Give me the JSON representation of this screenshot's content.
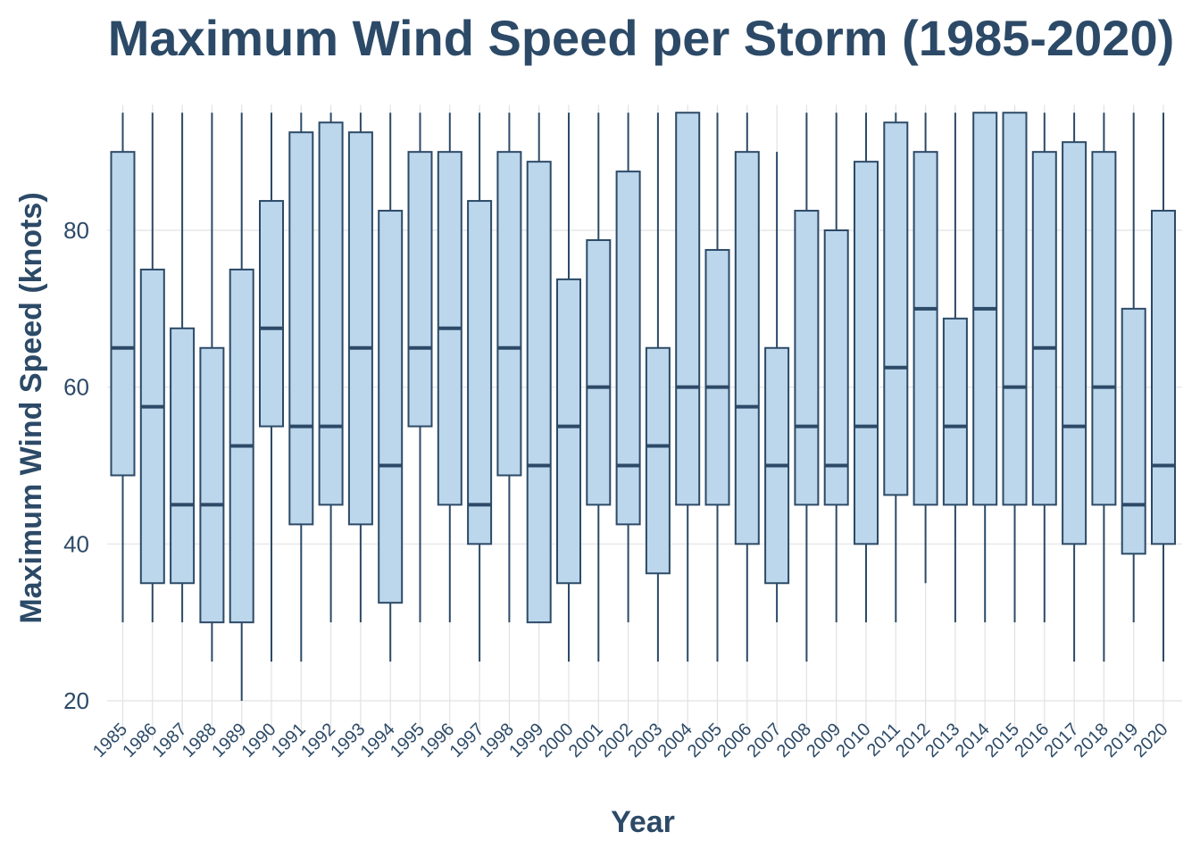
{
  "chart_data": {
    "type": "boxplot",
    "title": "Maximum Wind Speed per Storm (1985-2020)",
    "xlabel": "Year",
    "ylabel": "Maximum Wind Speed (knots)",
    "ylim": [
      15,
      96
    ],
    "yticks": [
      20,
      40,
      60,
      80
    ],
    "grid": true,
    "box_fill": "#bcd6ec",
    "line_color": "#2c4a67",
    "categories": [
      "1985",
      "1986",
      "1987",
      "1988",
      "1989",
      "1990",
      "1991",
      "1992",
      "1993",
      "1994",
      "1995",
      "1996",
      "1997",
      "1998",
      "1999",
      "2000",
      "2001",
      "2002",
      "2003",
      "2004",
      "2005",
      "2006",
      "2007",
      "2008",
      "2009",
      "2010",
      "2011",
      "2012",
      "2013",
      "2014",
      "2015",
      "2016",
      "2017",
      "2018",
      "2019",
      "2020"
    ],
    "boxes": [
      {
        "min": 30,
        "q1": 48.75,
        "median": 65,
        "q3": 90,
        "max": 95
      },
      {
        "min": 30,
        "q1": 35,
        "median": 57.5,
        "q3": 75,
        "max": 95
      },
      {
        "min": 30,
        "q1": 35,
        "median": 45,
        "q3": 67.5,
        "max": 95
      },
      {
        "min": 25,
        "q1": 30,
        "median": 45,
        "q3": 65,
        "max": 95
      },
      {
        "min": 20,
        "q1": 30,
        "median": 52.5,
        "q3": 75,
        "max": 95
      },
      {
        "min": 25,
        "q1": 55,
        "median": 67.5,
        "q3": 83.75,
        "max": 95
      },
      {
        "min": 25,
        "q1": 42.5,
        "median": 55,
        "q3": 92.5,
        "max": 95
      },
      {
        "min": 30,
        "q1": 45,
        "median": 55,
        "q3": 93.75,
        "max": 95
      },
      {
        "min": 30,
        "q1": 42.5,
        "median": 65,
        "q3": 92.5,
        "max": 95
      },
      {
        "min": 25,
        "q1": 32.5,
        "median": 50,
        "q3": 82.5,
        "max": 95
      },
      {
        "min": 30,
        "q1": 55,
        "median": 65,
        "q3": 90,
        "max": 95
      },
      {
        "min": 30,
        "q1": 45,
        "median": 67.5,
        "q3": 90,
        "max": 95
      },
      {
        "min": 25,
        "q1": 40,
        "median": 45,
        "q3": 83.75,
        "max": 95
      },
      {
        "min": 30,
        "q1": 48.75,
        "median": 65,
        "q3": 90,
        "max": 95
      },
      {
        "min": 30,
        "q1": 30,
        "median": 50,
        "q3": 88.75,
        "max": 95
      },
      {
        "min": 25,
        "q1": 35,
        "median": 55,
        "q3": 73.75,
        "max": 95
      },
      {
        "min": 25,
        "q1": 45,
        "median": 60,
        "q3": 78.75,
        "max": 95
      },
      {
        "min": 30,
        "q1": 42.5,
        "median": 50,
        "q3": 87.5,
        "max": 95
      },
      {
        "min": 25,
        "q1": 36.25,
        "median": 52.5,
        "q3": 65,
        "max": 95
      },
      {
        "min": 25,
        "q1": 45,
        "median": 60,
        "q3": 95,
        "max": 95
      },
      {
        "min": 25,
        "q1": 45,
        "median": 60,
        "q3": 77.5,
        "max": 95
      },
      {
        "min": 25,
        "q1": 40,
        "median": 57.5,
        "q3": 90,
        "max": 95
      },
      {
        "min": 30,
        "q1": 35,
        "median": 50,
        "q3": 65,
        "max": 90
      },
      {
        "min": 25,
        "q1": 45,
        "median": 55,
        "q3": 82.5,
        "max": 95
      },
      {
        "min": 30,
        "q1": 45,
        "median": 50,
        "q3": 80,
        "max": 95
      },
      {
        "min": 30,
        "q1": 40,
        "median": 55,
        "q3": 88.75,
        "max": 95
      },
      {
        "min": 30,
        "q1": 46.25,
        "median": 62.5,
        "q3": 93.75,
        "max": 95
      },
      {
        "min": 35,
        "q1": 45,
        "median": 70,
        "q3": 90,
        "max": 95
      },
      {
        "min": 30,
        "q1": 45,
        "median": 55,
        "q3": 68.75,
        "max": 95
      },
      {
        "min": 30,
        "q1": 45,
        "median": 70,
        "q3": 95,
        "max": 95
      },
      {
        "min": 30,
        "q1": 45,
        "median": 60,
        "q3": 95,
        "max": 95
      },
      {
        "min": 30,
        "q1": 45,
        "median": 65,
        "q3": 90,
        "max": 95
      },
      {
        "min": 25,
        "q1": 40,
        "median": 55,
        "q3": 91.25,
        "max": 95
      },
      {
        "min": 25,
        "q1": 45,
        "median": 60,
        "q3": 90,
        "max": 95
      },
      {
        "min": 30,
        "q1": 38.75,
        "median": 45,
        "q3": 70,
        "max": 95
      },
      {
        "min": 25,
        "q1": 40,
        "median": 50,
        "q3": 82.5,
        "max": 95
      }
    ]
  }
}
